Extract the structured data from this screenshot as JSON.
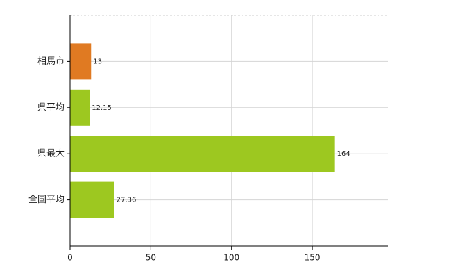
{
  "chart_data": {
    "type": "bar",
    "orientation": "horizontal",
    "categories": [
      "相馬市",
      "県平均",
      "県最大",
      "全国平均"
    ],
    "values": [
      13,
      12.15,
      164,
      27.36
    ],
    "colors": [
      "#e07a22",
      "#9dc820",
      "#9dc820",
      "#9dc820"
    ],
    "xlim": [
      0,
      196.8
    ],
    "xticks": [
      0,
      50,
      100,
      150
    ],
    "grid": true
  }
}
